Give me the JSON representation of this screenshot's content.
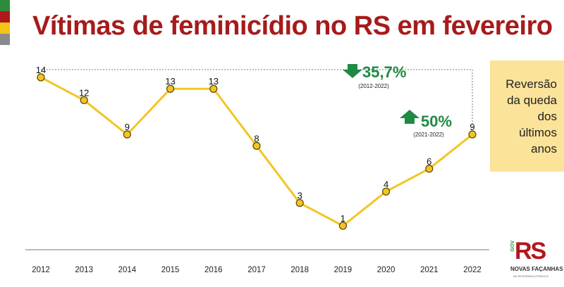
{
  "title": "Vítimas de feminicídio no RS em fevereiro",
  "colors": {
    "title": "#a61b1b",
    "line": "#f2c523",
    "marker_fill": "#f2c523",
    "marker_stroke": "#5a4500",
    "green": "#1f8a43",
    "callout_bg": "#fbe39a",
    "flag_green": "#2e8b3e",
    "flag_red": "#b3161b",
    "flag_yellow": "#f3c316",
    "flag_gray": "#8a8a8a"
  },
  "chart_data": {
    "type": "line",
    "title": "Vítimas de feminicídio no RS em fevereiro",
    "xlabel": "",
    "ylabel": "",
    "grid": false,
    "categories": [
      "2012",
      "2013",
      "2014",
      "2015",
      "2016",
      "2017",
      "2018",
      "2019",
      "2020",
      "2021",
      "2022"
    ],
    "values": [
      14,
      12,
      9,
      13,
      13,
      8,
      3,
      1,
      4,
      6,
      9
    ],
    "ylim": [
      -1.5,
      15
    ],
    "annotations": [
      {
        "arrow": "down",
        "value": "35,7%",
        "period": "(2012-2022)"
      },
      {
        "arrow": "up",
        "value": "50%",
        "period": "(2021-2022)"
      }
    ]
  },
  "callout": "Reversão\nda queda\ndos\núltimos\nanos",
  "logo": {
    "letters": "RS",
    "gov": "GOV",
    "slogan": "NOVAS FAÇANHAS",
    "sub": "NA SEGURANÇA PÚBLICA"
  }
}
